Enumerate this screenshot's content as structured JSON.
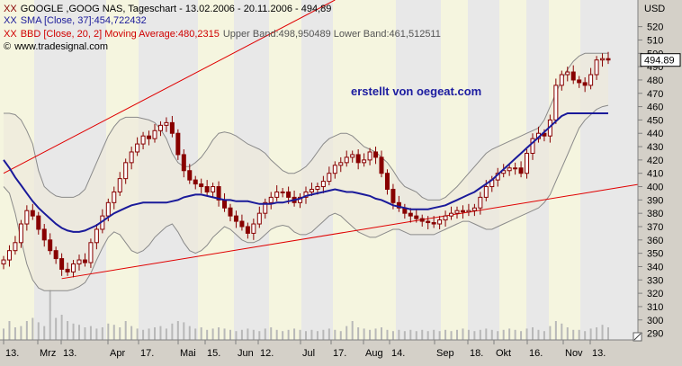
{
  "header": {
    "title": "GOOGLE ,GOOG NAS, Tageschart - 13.02.2006 - 20.11.2006 - 494,89",
    "sma": "SMA [Close, 37]:454,722432",
    "bbd_label": "BBD [Close, 20, 2] Moving Average:480,2315",
    "bbd_bands": "Upper Band:498,950489 Lower Band:461,512511",
    "site": "www.tradesignal.com",
    "marker": "XX"
  },
  "watermark": "erstellt von oegeat.com",
  "price_tag": "494.89",
  "currency": "USD",
  "colors": {
    "candle": "#880000",
    "sma": "#1a1a9a",
    "band_fill": "#eeeadc",
    "trend": "#e00000",
    "volume": "#b8b8b8",
    "stripe_light": "#f3f3d9",
    "stripe_dark": "#cbcbcb",
    "plot_bg": "#ffffff",
    "chrome": "#d4d0c8"
  },
  "chart_data": {
    "type": "candlestick",
    "ylim": [
      285,
      540
    ],
    "y_ticks": [
      290,
      300,
      310,
      320,
      330,
      340,
      350,
      360,
      370,
      380,
      390,
      400,
      410,
      420,
      430,
      440,
      450,
      460,
      470,
      480,
      490,
      500,
      510,
      520
    ],
    "x_tick_labels": [
      "13.",
      "Mrz",
      "13.",
      "Apr",
      "17.",
      "Mai",
      "15.",
      "Jun",
      "12.",
      "Jul",
      "17.",
      "Aug",
      "14.",
      "Sep",
      "18.",
      "Okt",
      "16.",
      "Nov",
      "13."
    ],
    "close": [
      345,
      352,
      358,
      372,
      382,
      378,
      368,
      360,
      352,
      346,
      338,
      336,
      342,
      345,
      343,
      358,
      368,
      378,
      388,
      396,
      406,
      418,
      426,
      432,
      438,
      436,
      442,
      446,
      448,
      440,
      424,
      412,
      405,
      402,
      400,
      396,
      400,
      390,
      384,
      378,
      374,
      370,
      365,
      372,
      380,
      388,
      392,
      396,
      396,
      392,
      388,
      392,
      396,
      398,
      400,
      404,
      410,
      416,
      418,
      422,
      424,
      418,
      420,
      426,
      422,
      410,
      398,
      388,
      384,
      380,
      378,
      376,
      374,
      373,
      372,
      375,
      378,
      380,
      382,
      381,
      382,
      384,
      392,
      400,
      405,
      410,
      412,
      414,
      414,
      410,
      425,
      436,
      440,
      438,
      450,
      476,
      484,
      486,
      480,
      478,
      476,
      484,
      495,
      496,
      495
    ],
    "sma_37": [
      420,
      414,
      407,
      401,
      395,
      389,
      384,
      380,
      376,
      372,
      369,
      367,
      366,
      366,
      367,
      369,
      371,
      374,
      377,
      380,
      382,
      384,
      386,
      387,
      388,
      388,
      388,
      388,
      388,
      389,
      390,
      392,
      393,
      394,
      394,
      393,
      392,
      391,
      390,
      390,
      389,
      389,
      389,
      388,
      387,
      387,
      387,
      388,
      388,
      389,
      390,
      391,
      393,
      394,
      395,
      396,
      397,
      398,
      397,
      396,
      396,
      395,
      394,
      393,
      391,
      390,
      388,
      386,
      385,
      384,
      383,
      383,
      383,
      383,
      384,
      385,
      386,
      388,
      390,
      392,
      394,
      396,
      399,
      402,
      405,
      409,
      413,
      417,
      421,
      425,
      429,
      433,
      437,
      441,
      445,
      449,
      453,
      455,
      455,
      455,
      455,
      455,
      455,
      455,
      455
    ],
    "bb_upper": [
      455,
      455,
      454,
      450,
      442,
      432,
      412,
      400,
      396,
      393,
      392,
      392,
      392,
      394,
      398,
      408,
      418,
      428,
      438,
      445,
      450,
      452,
      452,
      452,
      451,
      450,
      448,
      443,
      436,
      425,
      418,
      415,
      415,
      418,
      422,
      428,
      435,
      440,
      441,
      440,
      438,
      435,
      432,
      430,
      428,
      425,
      420,
      416,
      412,
      410,
      410,
      412,
      415,
      420,
      426,
      432,
      436,
      438,
      440,
      440,
      438,
      434,
      430,
      428,
      426,
      422,
      418,
      412,
      405,
      400,
      398,
      396,
      392,
      390,
      390,
      390,
      392,
      396,
      400,
      405,
      410,
      415,
      420,
      425,
      428,
      430,
      432,
      434,
      436,
      438,
      440,
      442,
      444,
      450,
      460,
      470,
      480,
      488,
      494,
      498,
      500,
      500,
      500,
      500,
      500
    ],
    "bb_lower": [
      400,
      395,
      380,
      360,
      342,
      330,
      324,
      322,
      322,
      322,
      322,
      322,
      323,
      325,
      328,
      335,
      345,
      354,
      362,
      366,
      364,
      358,
      352,
      350,
      352,
      356,
      362,
      366,
      370,
      372,
      366,
      358,
      352,
      350,
      352,
      356,
      362,
      366,
      370,
      368,
      364,
      360,
      358,
      358,
      360,
      364,
      368,
      370,
      371,
      370,
      366,
      364,
      364,
      366,
      370,
      374,
      378,
      380,
      378,
      374,
      370,
      366,
      364,
      362,
      362,
      364,
      366,
      368,
      368,
      366,
      364,
      364,
      364,
      364,
      364,
      366,
      368,
      370,
      372,
      374,
      374,
      372,
      370,
      368,
      368,
      370,
      372,
      374,
      376,
      378,
      380,
      382,
      384,
      388,
      394,
      404,
      414,
      424,
      434,
      444,
      450,
      454,
      458,
      460,
      461
    ],
    "volume": [
      0.18,
      0.3,
      0.2,
      0.22,
      0.3,
      0.35,
      0.28,
      0.22,
      0.8,
      0.35,
      0.4,
      0.3,
      0.26,
      0.24,
      0.2,
      0.22,
      0.18,
      0.2,
      0.26,
      0.24,
      0.2,
      0.3,
      0.22,
      0.18,
      0.16,
      0.18,
      0.2,
      0.22,
      0.18,
      0.26,
      0.3,
      0.28,
      0.22,
      0.18,
      0.2,
      0.16,
      0.18,
      0.2,
      0.18,
      0.16,
      0.14,
      0.16,
      0.18,
      0.16,
      0.14,
      0.18,
      0.2,
      0.16,
      0.14,
      0.16,
      0.18,
      0.16,
      0.14,
      0.16,
      0.14,
      0.16,
      0.18,
      0.16,
      0.14,
      0.22,
      0.3,
      0.2,
      0.18,
      0.16,
      0.18,
      0.2,
      0.16,
      0.14,
      0.16,
      0.14,
      0.16,
      0.14,
      0.16,
      0.14,
      0.16,
      0.14,
      0.16,
      0.14,
      0.16,
      0.18,
      0.16,
      0.14,
      0.16,
      0.18,
      0.16,
      0.14,
      0.16,
      0.18,
      0.16,
      0.14,
      0.18,
      0.2,
      0.16,
      0.14,
      0.22,
      0.3,
      0.26,
      0.2,
      0.16,
      0.16,
      0.14,
      0.18,
      0.2,
      0.24,
      0.2
    ],
    "trend_lines": [
      {
        "from": [
          0,
          410
        ],
        "to": [
          57,
          540
        ]
      },
      {
        "from": [
          10,
          331
        ],
        "to": [
          104,
          398
        ]
      }
    ]
  }
}
